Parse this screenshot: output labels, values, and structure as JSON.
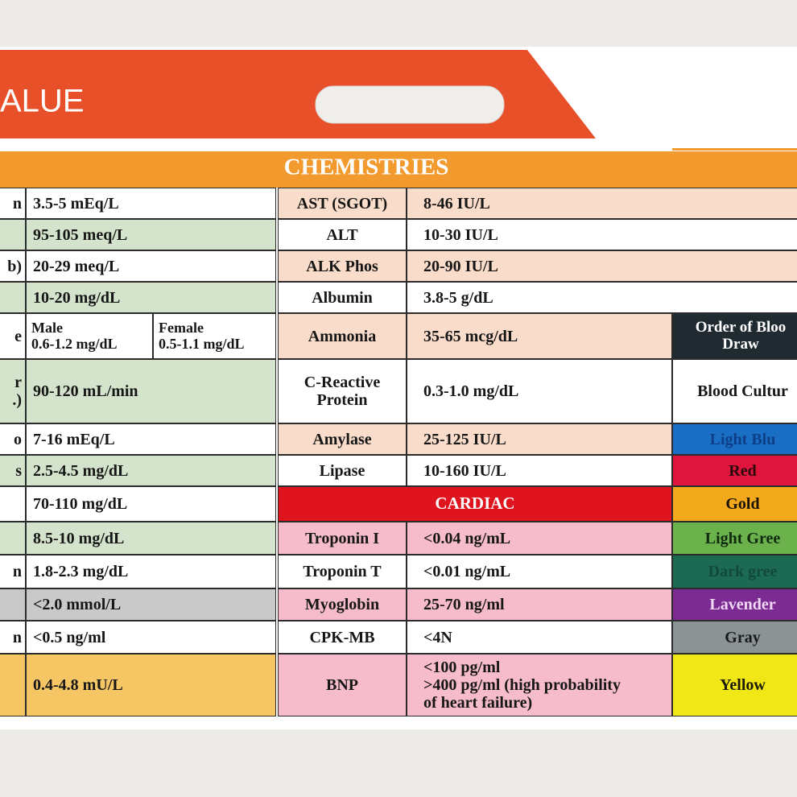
{
  "header": {
    "title": "ALUE"
  },
  "section": "CHEMISTRIES",
  "left_rows": [
    {
      "label": "n",
      "value": "3.5-5 mEq/L"
    },
    {
      "value": "95-105 meq/L"
    },
    {
      "label": "b)",
      "value": "20-29 meq/L"
    },
    {
      "value": "10-20 mg/dL"
    },
    {
      "label": "e",
      "male": {
        "label": "Male",
        "value": "0.6-1.2 mg/dL"
      },
      "female": {
        "label": "Female",
        "value": "0.5-1.1 mg/dL"
      }
    },
    {
      "label_lines": [
        "r",
        ".)"
      ],
      "value": "90-120 mL/min"
    },
    {
      "label": "o",
      "value": "7-16 mEq/L"
    },
    {
      "label": "s",
      "value": "2.5-4.5 mg/dL"
    },
    {
      "value": "70-110 mg/dL"
    },
    {
      "value": "8.5-10 mg/dL"
    },
    {
      "label": "n",
      "value": "1.8-2.3 mg/dL"
    },
    {
      "value": "<2.0 mmol/L"
    },
    {
      "label": "n",
      "value": "<0.5 ng/ml"
    },
    {
      "value": "0.4-4.8 mU/L"
    }
  ],
  "chemistries": [
    {
      "name": "AST (SGOT)",
      "range": "8-46 IU/L"
    },
    {
      "name": "ALT",
      "range": "10-30 IU/L"
    },
    {
      "name": "ALK Phos",
      "range": "20-90 IU/L"
    },
    {
      "name": "Albumin",
      "range": "3.8-5 g/dL"
    },
    {
      "name": "Ammonia",
      "range": "35-65 mcg/dL"
    },
    {
      "name_lines": [
        "C-Reactive",
        "Protein"
      ],
      "range": "0.3-1.0 mg/dL"
    },
    {
      "name": "Amylase",
      "range": "25-125 IU/L"
    },
    {
      "name": "Lipase",
      "range": "10-160 IU/L"
    }
  ],
  "cardiac": {
    "title": "CARDIAC",
    "rows": [
      {
        "name": "Troponin I",
        "range": "<0.04 ng/mL"
      },
      {
        "name": "Troponin T",
        "range": "<0.01 ng/mL"
      },
      {
        "name": "Myoglobin",
        "range": "25-70 ng/ml"
      },
      {
        "name": "CPK-MB",
        "range": "<4N"
      },
      {
        "name": "BNP",
        "range_lines": [
          "<100 pg/ml",
          ">400 pg/ml (high probability",
          "of heart failure)"
        ]
      }
    ]
  },
  "order_of_draw": {
    "title_lines": [
      "Order of Bloo",
      "Draw"
    ],
    "tubes": [
      "Blood Cultur",
      "Light Blu",
      "Red",
      "Gold",
      "Light Gree",
      "Dark gree",
      "Lavender",
      "Gray",
      "Yellow"
    ]
  }
}
